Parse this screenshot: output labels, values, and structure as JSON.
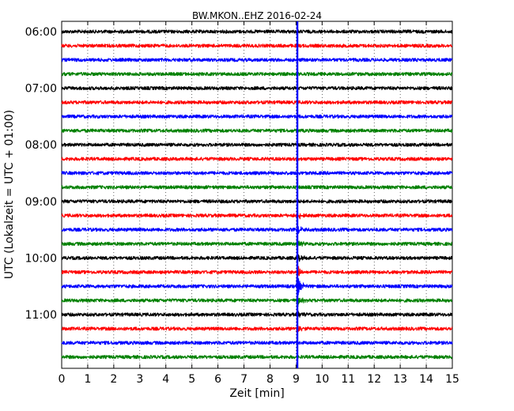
{
  "chart_data": {
    "type": "line",
    "title": "BW.MKON..EHZ 2016-02-24",
    "xlabel": "Zeit  [min]",
    "ylabel": "UTC (Lokalzeit = UTC + 01:00)",
    "xlim": [
      0,
      15
    ],
    "x_ticks": [
      0,
      1,
      2,
      3,
      4,
      5,
      6,
      7,
      8,
      9,
      10,
      11,
      12,
      13,
      14,
      15
    ],
    "y_tick_labels": [
      "06:00",
      "07:00",
      "08:00",
      "09:00",
      "10:00",
      "11:00"
    ],
    "grid": true,
    "trace_interval_minutes": 15,
    "trace_start": "06:00",
    "trace_count": 24,
    "trace_colors": [
      "#000000",
      "#ff0000",
      "#0000ff",
      "#008000"
    ],
    "event_marker": {
      "x": 9.05,
      "color": "#0000ff"
    },
    "event_signal": {
      "x_start": 9.05,
      "traces_with_signal": [
        "09:15",
        "09:30",
        "09:45",
        "10:00",
        "10:15",
        "10:30",
        "10:45",
        "11:00",
        "11:15"
      ],
      "peak_trace": "10:30"
    }
  }
}
